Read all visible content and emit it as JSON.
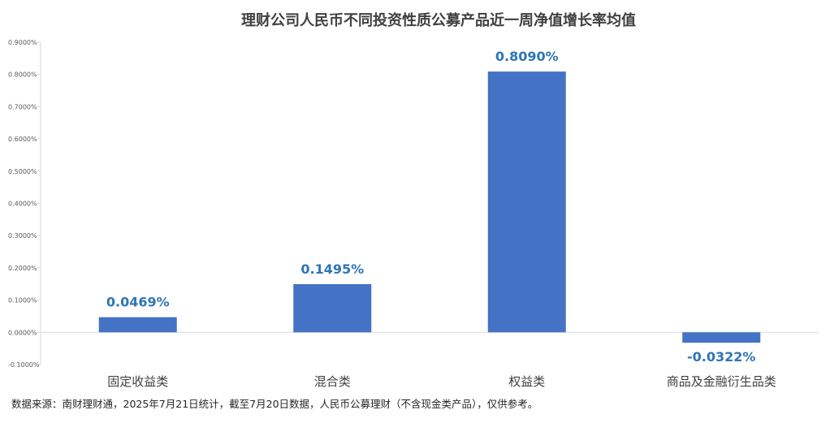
{
  "chart_data": {
    "type": "bar",
    "title": "理财公司人民币不同投资性质公募产品近一周净值增长率均值",
    "categories": [
      "固定收益类",
      "混合类",
      "权益类",
      "商品及金融衍生品类"
    ],
    "values": [
      0.0469,
      0.1495,
      0.809,
      -0.0322
    ],
    "value_labels": [
      "0.0469%",
      "0.1495%",
      "0.8090%",
      "-0.0322%"
    ],
    "unit": "%",
    "ylim": [
      -0.1,
      0.9
    ],
    "yticks": [
      -0.1,
      0.0,
      0.1,
      0.2,
      0.3,
      0.4,
      0.5,
      0.6,
      0.7,
      0.8,
      0.9
    ],
    "ytick_labels": [
      "-0.1000%",
      "0.0000%",
      "0.1000%",
      "0.2000%",
      "0.3000%",
      "0.4000%",
      "0.5000%",
      "0.6000%",
      "0.7000%",
      "0.8000%",
      "0.9000%"
    ],
    "xlabel": "",
    "ylabel": "",
    "grid": false,
    "legend": "none",
    "bar_color": "#4472C4",
    "label_color": "#2E75B6",
    "axis_color": "#D9D9D9"
  },
  "footnote": "数据来源：南财理财通，2025年7月21日统计，截至7月20日数据，人民币公募理财（不含现金类产品），仅供参考。"
}
